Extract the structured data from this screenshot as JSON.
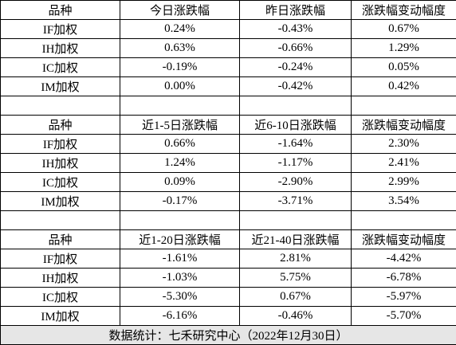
{
  "sections": [
    {
      "header": [
        "品种",
        "今日涨跌幅",
        "昨日涨跌幅",
        "涨跌幅变动幅度"
      ],
      "rows": [
        [
          "IF加权",
          "0.24%",
          "-0.43%",
          "0.67%"
        ],
        [
          "IH加权",
          "0.63%",
          "-0.66%",
          "1.29%"
        ],
        [
          "IC加权",
          "-0.19%",
          "-0.24%",
          "0.05%"
        ],
        [
          "IM加权",
          "0.00%",
          "-0.42%",
          "0.42%"
        ]
      ]
    },
    {
      "header": [
        "品种",
        "近1-5日涨跌幅",
        "近6-10日涨跌幅",
        "涨跌幅变动幅度"
      ],
      "rows": [
        [
          "IF加权",
          "0.66%",
          "-1.64%",
          "2.30%"
        ],
        [
          "IH加权",
          "1.24%",
          "-1.17%",
          "2.41%"
        ],
        [
          "IC加权",
          "0.09%",
          "-2.90%",
          "2.99%"
        ],
        [
          "IM加权",
          "-0.17%",
          "-3.71%",
          "3.54%"
        ]
      ]
    },
    {
      "header": [
        "品种",
        "近1-20日涨跌幅",
        "近21-40日涨跌幅",
        "涨跌幅变动幅度"
      ],
      "rows": [
        [
          "IF加权",
          "-1.61%",
          "2.81%",
          "-4.42%"
        ],
        [
          "IH加权",
          "-1.03%",
          "5.75%",
          "-6.78%"
        ],
        [
          "IC加权",
          "-5.30%",
          "0.67%",
          "-5.97%"
        ],
        [
          "IM加权",
          "-6.16%",
          "-0.46%",
          "-5.70%"
        ]
      ]
    }
  ],
  "footer": "数据统计：七禾研究中心（2022年12月30日）"
}
